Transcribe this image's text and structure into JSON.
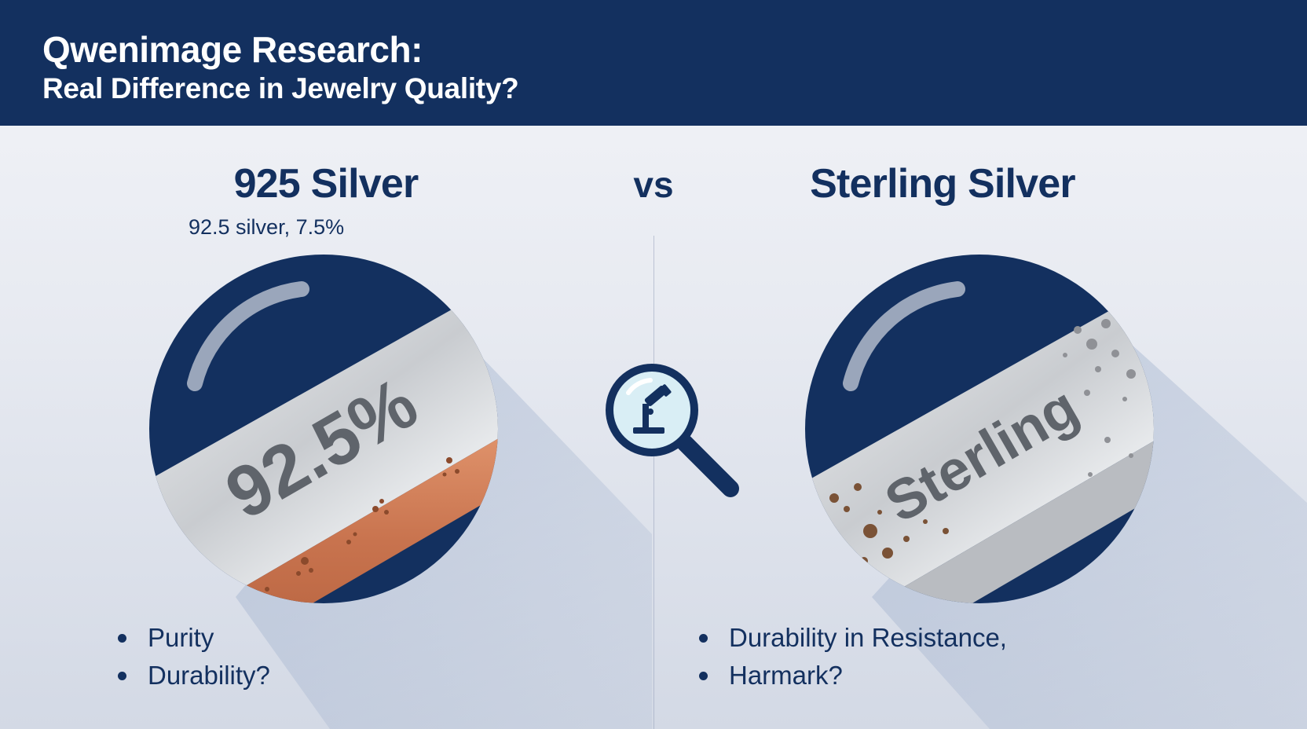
{
  "header": {
    "title": "Qwenimage Research:",
    "subtitle": "Real Difference in Jewelry Quality?"
  },
  "comparison": {
    "left": {
      "title": "925 Silver",
      "note": "92.5 silver, 7.5%",
      "badge_text": "92.5%",
      "bullets": [
        "Purity",
        "Durability?"
      ]
    },
    "separator": "vs",
    "right": {
      "title": "Sterling Silver",
      "badge_text": "Sterling",
      "bullets": [
        "Durability in Resistance,",
        "Harmark?"
      ]
    }
  },
  "icons": {
    "center": "microscope-magnifier-icon"
  },
  "colors": {
    "navy": "#13305f",
    "silver": "#d5d7da",
    "copper": "#c8734e",
    "tarnish": "#8a5a3a",
    "lens": "#d9eef5"
  }
}
